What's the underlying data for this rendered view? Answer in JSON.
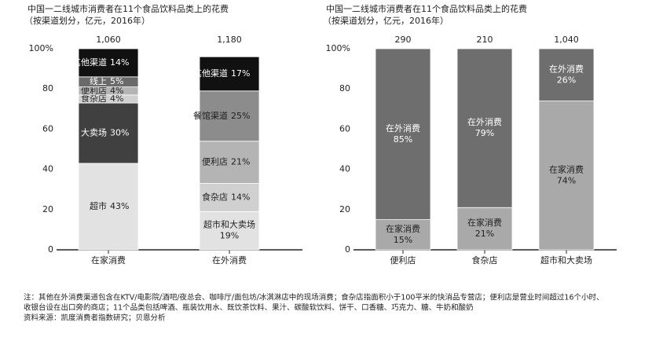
{
  "chart_data": [
    {
      "type": "stacked-bar",
      "title": "中国一二线城市消费者在11个食品饮料品类上的花费",
      "subtitle": "（按渠道划分，亿元，2016年）",
      "categories": [
        "在家消费",
        "在外消费"
      ],
      "totals": {
        "values": [
          1060,
          1180
        ],
        "value_labels": [
          "1,060",
          "1,180"
        ]
      },
      "ylim": [
        0,
        100
      ],
      "yticks": [
        0,
        20,
        40,
        60,
        80,
        {
          "value": 100,
          "label": "100%"
        }
      ],
      "series": [
        {
          "name": "超市",
          "color": "#e2e2e2",
          "values": [
            43,
            null
          ],
          "value_labels": [
            "43%",
            null
          ]
        },
        {
          "name": "超市和大卖场",
          "color": "#e2e2e2",
          "values": [
            null,
            19
          ],
          "value_labels": [
            null,
            "19%"
          ]
        },
        {
          "name": "大卖场",
          "color": "#404040",
          "values": [
            30,
            null
          ],
          "value_labels": [
            "30%",
            null
          ]
        },
        {
          "name": "食杂店",
          "color": "#d0d0d0",
          "values": [
            4,
            14
          ],
          "value_labels": [
            "4%",
            "14%"
          ]
        },
        {
          "name": "便利店",
          "color": "#b4b4b4",
          "values": [
            4,
            21
          ],
          "value_labels": [
            "4%",
            "21%"
          ]
        },
        {
          "name": "线上",
          "color": "#6a6a6a",
          "values": [
            5,
            null
          ],
          "value_labels": [
            "5%",
            null
          ]
        },
        {
          "name": "餐馆渠道",
          "color": "#8c8c8c",
          "values": [
            null,
            25
          ],
          "value_labels": [
            null,
            "25%"
          ]
        },
        {
          "name": "其他渠道",
          "color": "#111111",
          "values": [
            14,
            17
          ],
          "value_labels": [
            "14%",
            "17%"
          ]
        }
      ]
    },
    {
      "type": "stacked-bar",
      "title": "中国一二线城市消费者在11个食品饮料品类上的花费",
      "subtitle": "（按渠道划分，亿元，2016年）",
      "categories": [
        "便利店",
        "食杂店",
        "超市和大卖场"
      ],
      "totals": {
        "values": [
          290,
          210,
          1040
        ],
        "value_labels": [
          "290",
          "210",
          "1,040"
        ]
      },
      "ylim": [
        0,
        100
      ],
      "yticks": [
        0,
        20,
        40,
        60,
        80,
        {
          "value": 100,
          "label": "100%"
        }
      ],
      "series": [
        {
          "name": "在家消费",
          "color": "#a9a9a9",
          "values": [
            15,
            21,
            74
          ],
          "value_labels": [
            "15%",
            "21%",
            "74%"
          ]
        },
        {
          "name": "在外消费",
          "color": "#6e6e6e",
          "values": [
            85,
            79,
            26
          ],
          "value_labels": [
            "85%",
            "79%",
            "26%"
          ]
        }
      ]
    }
  ],
  "footnote": [
    "注：其他在外消费渠道包含在KTV/电影院/酒吧/夜总会、咖啡厅/面包坊/冰淇淋店中的现场消费；食杂店指面积小于100平米的快消品专营店；便利店是营业时间超过16个小时、",
    "收银台设在出口旁的商店；11个品类包括啤酒、瓶装饮用水、既饮茶饮料、果汁、碳酸软饮料、饼干、口香糖、巧克力、糖、牛奶和酸奶"
  ],
  "source": "资料来源：凯度消费者指数研究；贝恩分析"
}
